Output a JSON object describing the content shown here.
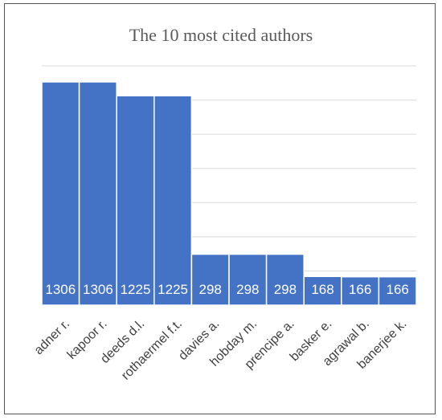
{
  "chart_data": {
    "type": "bar",
    "title": "The 10 most cited authors",
    "categories": [
      "adner r.",
      "kapoor r.",
      "deeds d.l.",
      "rothaermel f.t.",
      "davies a.",
      "hobday m.",
      "prencipe a.",
      "basker e.",
      "agrawal b.",
      "banerjee k."
    ],
    "values": [
      1306,
      1306,
      1225,
      1225,
      298,
      298,
      298,
      168,
      166,
      166
    ],
    "xlabel": "",
    "ylabel": "",
    "ylim": [
      0,
      1400
    ],
    "grid": true,
    "legend": "none",
    "show_value_labels": true,
    "colors": {
      "bar": "#4472c4",
      "grid": "#d9d9d9",
      "title": "#595959",
      "tick_label": "#404040",
      "data_label": "#ffffff"
    }
  }
}
